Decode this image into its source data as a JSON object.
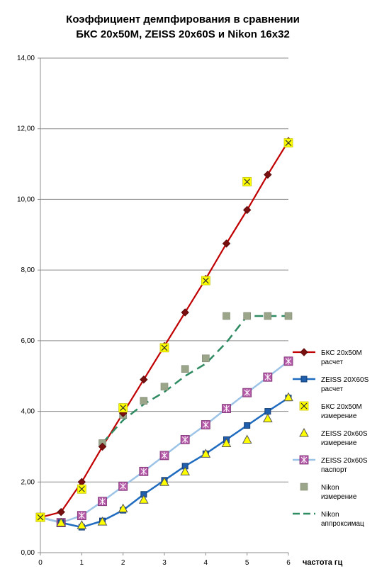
{
  "chart_data": {
    "type": "line",
    "title_lines": [
      "Коэффициент демпфирования в сравнении",
      "БКС 20х50М,  ZEISS 20х60S и Nikon 16х32"
    ],
    "xlabel": "частота гц",
    "ylabel": "",
    "xlim": [
      0,
      6
    ],
    "ylim": [
      0,
      14
    ],
    "x_ticks": [
      "0",
      "1",
      "2",
      "3",
      "4",
      "5",
      "6"
    ],
    "y_ticks": [
      "0,00",
      "2,00",
      "4,00",
      "6,00",
      "8,00",
      "10,00",
      "12,00",
      "14,00"
    ],
    "grid": "horizontal",
    "legend_position": "right",
    "series": [
      {
        "name": [
          "БКС 20х50М",
          "расчет"
        ],
        "style": "line-diamond",
        "color": "#c00000",
        "points": [
          [
            0,
            1.0
          ],
          [
            0.5,
            1.15
          ],
          [
            1,
            2.0
          ],
          [
            1.5,
            3.0
          ],
          [
            2,
            3.95
          ],
          [
            2.5,
            4.9
          ],
          [
            3,
            5.85
          ],
          [
            3.5,
            6.8
          ],
          [
            4,
            7.75
          ],
          [
            4.5,
            8.75
          ],
          [
            5,
            9.7
          ],
          [
            5.5,
            10.7
          ],
          [
            6,
            11.65
          ]
        ]
      },
      {
        "name": [
          "ZEISS 20X60S",
          "расчет"
        ],
        "style": "line-square",
        "color": "#1f6bbf",
        "points": [
          [
            0,
            1.0
          ],
          [
            0.5,
            0.85
          ],
          [
            1,
            0.72
          ],
          [
            1.5,
            0.9
          ],
          [
            2,
            1.2
          ],
          [
            2.5,
            1.65
          ],
          [
            3,
            2.05
          ],
          [
            3.5,
            2.45
          ],
          [
            4,
            2.8
          ],
          [
            4.5,
            3.2
          ],
          [
            5,
            3.6
          ],
          [
            5.5,
            4.0
          ],
          [
            6,
            4.38
          ]
        ]
      },
      {
        "name": [
          "БКС 20х50М",
          "измерение"
        ],
        "style": "marker-x-yellow",
        "color": "#ffff00",
        "points": [
          [
            0,
            1.0
          ],
          [
            1,
            1.8
          ],
          [
            2,
            4.1
          ],
          [
            3,
            5.8
          ],
          [
            4,
            7.7
          ],
          [
            5,
            10.5
          ],
          [
            6,
            11.6
          ]
        ]
      },
      {
        "name": [
          "ZEISS 20х60S",
          "измерение"
        ],
        "style": "marker-triangle",
        "color": "#ffff00",
        "points": [
          [
            0,
            1.0
          ],
          [
            0.5,
            0.85
          ],
          [
            1,
            0.78
          ],
          [
            1.5,
            0.88
          ],
          [
            2,
            1.25
          ],
          [
            2.5,
            1.5
          ],
          [
            3,
            2.0
          ],
          [
            3.5,
            2.3
          ],
          [
            4,
            2.8
          ],
          [
            4.5,
            3.1
          ],
          [
            5,
            3.2
          ],
          [
            5.5,
            3.8
          ],
          [
            6,
            4.4
          ]
        ]
      },
      {
        "name": [
          "ZEISS 20х60S",
          "паспорт"
        ],
        "style": "line-star",
        "color": "#9dc3e6",
        "marker_color": "#b55aa8",
        "points": [
          [
            0,
            1.0
          ],
          [
            0.5,
            0.85
          ],
          [
            1,
            1.05
          ],
          [
            1.5,
            1.45
          ],
          [
            2,
            1.88
          ],
          [
            2.5,
            2.3
          ],
          [
            3,
            2.75
          ],
          [
            3.5,
            3.2
          ],
          [
            4,
            3.62
          ],
          [
            4.5,
            4.08
          ],
          [
            5,
            4.53
          ],
          [
            5.5,
            4.97
          ],
          [
            6,
            5.42
          ]
        ]
      },
      {
        "name": [
          "Nikon",
          "измерение"
        ],
        "style": "marker-square-gray",
        "color": "#9ba58a",
        "points": [
          [
            0,
            1.0
          ],
          [
            0.5,
            0.85
          ],
          [
            1,
            1.05
          ],
          [
            1.5,
            3.1
          ],
          [
            2,
            3.9
          ],
          [
            2.5,
            4.3
          ],
          [
            3,
            4.7
          ],
          [
            3.5,
            5.2
          ],
          [
            4,
            5.5
          ],
          [
            4.5,
            6.7
          ],
          [
            5,
            6.7
          ],
          [
            5.5,
            6.7
          ],
          [
            6,
            6.7
          ]
        ]
      },
      {
        "name": [
          "Nikon",
          "аппроксимац"
        ],
        "style": "line-dashed",
        "color": "#2e8b62",
        "points": [
          [
            1.5,
            3.1
          ],
          [
            2,
            3.75
          ],
          [
            2.5,
            4.2
          ],
          [
            3,
            4.55
          ],
          [
            3.5,
            5.0
          ],
          [
            4,
            5.35
          ],
          [
            4.5,
            5.95
          ],
          [
            5,
            6.7
          ],
          [
            5.5,
            6.7
          ],
          [
            6,
            6.7
          ]
        ]
      }
    ]
  }
}
